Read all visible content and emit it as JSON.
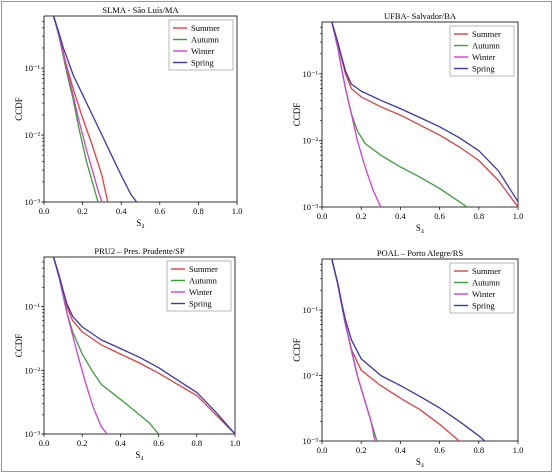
{
  "chart_data": [
    {
      "type": "line",
      "title": "SLMA - São Luís/MA",
      "xlabel": "S₄",
      "ylabel": "CCDF",
      "xlim": [
        0.0,
        1.0
      ],
      "ylim": [
        0.001,
        0.6
      ],
      "yscale": "log",
      "xticks": [
        "0.0",
        "0.2",
        "0.4",
        "0.6",
        "0.8",
        "1.0"
      ],
      "yticks": [
        {
          "v": 0.1,
          "label": "10⁻¹"
        },
        {
          "v": 0.01,
          "label": "10⁻²"
        },
        {
          "v": 0.001,
          "label": "10⁻³"
        }
      ],
      "legend_position": "top-right",
      "series": [
        {
          "name": "Summer",
          "color": "#e04040",
          "x": [
            0.05,
            0.08,
            0.1,
            0.12,
            0.15,
            0.2,
            0.25,
            0.3,
            0.33
          ],
          "y": [
            0.6,
            0.3,
            0.17,
            0.1,
            0.05,
            0.018,
            0.007,
            0.0025,
            0.001
          ]
        },
        {
          "name": "Autumn",
          "color": "#3aa03a",
          "x": [
            0.05,
            0.08,
            0.1,
            0.12,
            0.15,
            0.18,
            0.22,
            0.25,
            0.28
          ],
          "y": [
            0.6,
            0.28,
            0.15,
            0.08,
            0.035,
            0.013,
            0.004,
            0.002,
            0.001
          ]
        },
        {
          "name": "Winter",
          "color": "#d040d0",
          "x": [
            0.05,
            0.08,
            0.1,
            0.12,
            0.15,
            0.18,
            0.22,
            0.25,
            0.28,
            0.3
          ],
          "y": [
            0.6,
            0.29,
            0.16,
            0.09,
            0.04,
            0.017,
            0.006,
            0.003,
            0.0015,
            0.001
          ]
        },
        {
          "name": "Spring",
          "color": "#3838b0",
          "x": [
            0.05,
            0.08,
            0.1,
            0.12,
            0.15,
            0.2,
            0.25,
            0.3,
            0.35,
            0.4,
            0.45,
            0.48
          ],
          "y": [
            0.6,
            0.32,
            0.2,
            0.14,
            0.08,
            0.04,
            0.02,
            0.01,
            0.005,
            0.0025,
            0.0013,
            0.001
          ]
        }
      ]
    },
    {
      "type": "line",
      "title": "UFBA- Salvador/BA",
      "xlabel": "S₄",
      "ylabel": "CCDF",
      "xlim": [
        0.0,
        1.0
      ],
      "ylim": [
        0.001,
        0.6
      ],
      "yscale": "log",
      "xticks": [
        "0.0",
        "0.2",
        "0.4",
        "0.6",
        "0.8",
        "1.0"
      ],
      "yticks": [
        {
          "v": 0.1,
          "label": "10⁻¹"
        },
        {
          "v": 0.01,
          "label": "10⁻²"
        },
        {
          "v": 0.001,
          "label": "10⁻³"
        }
      ],
      "legend_position": "top-right",
      "series": [
        {
          "name": "Summer",
          "color": "#e04040",
          "x": [
            0.05,
            0.08,
            0.1,
            0.12,
            0.15,
            0.2,
            0.3,
            0.4,
            0.5,
            0.6,
            0.7,
            0.8,
            0.9,
            1.0
          ],
          "y": [
            0.6,
            0.3,
            0.17,
            0.1,
            0.06,
            0.045,
            0.032,
            0.024,
            0.017,
            0.012,
            0.008,
            0.005,
            0.0025,
            0.001
          ]
        },
        {
          "name": "Autumn",
          "color": "#3aa03a",
          "x": [
            0.05,
            0.08,
            0.1,
            0.12,
            0.15,
            0.18,
            0.22,
            0.3,
            0.4,
            0.5,
            0.6,
            0.7,
            0.74
          ],
          "y": [
            0.6,
            0.25,
            0.12,
            0.06,
            0.025,
            0.014,
            0.009,
            0.006,
            0.004,
            0.0028,
            0.0019,
            0.0012,
            0.001
          ]
        },
        {
          "name": "Winter",
          "color": "#d040d0",
          "x": [
            0.05,
            0.08,
            0.1,
            0.12,
            0.15,
            0.18,
            0.22,
            0.26,
            0.3
          ],
          "y": [
            0.6,
            0.25,
            0.12,
            0.06,
            0.025,
            0.01,
            0.004,
            0.0018,
            0.001
          ]
        },
        {
          "name": "Spring",
          "color": "#3838b0",
          "x": [
            0.05,
            0.08,
            0.1,
            0.12,
            0.15,
            0.2,
            0.3,
            0.4,
            0.5,
            0.6,
            0.7,
            0.8,
            0.9,
            1.0
          ],
          "y": [
            0.6,
            0.3,
            0.18,
            0.11,
            0.07,
            0.055,
            0.04,
            0.03,
            0.022,
            0.016,
            0.011,
            0.007,
            0.0035,
            0.0012
          ]
        }
      ]
    },
    {
      "type": "line",
      "title": "PRU2 – Pres. Prudente/SP",
      "xlabel": "S₄",
      "ylabel": "CCDF",
      "xlim": [
        0.0,
        1.0
      ],
      "ylim": [
        0.001,
        0.6
      ],
      "yscale": "log",
      "xticks": [
        "0.0",
        "0.2",
        "0.4",
        "0.6",
        "0.8",
        "1.0"
      ],
      "yticks": [
        {
          "v": 0.1,
          "label": "10⁻¹"
        },
        {
          "v": 0.01,
          "label": "10⁻²"
        },
        {
          "v": 0.001,
          "label": "10⁻³"
        }
      ],
      "legend_position": "top-right",
      "series": [
        {
          "name": "Summer",
          "color": "#e04040",
          "x": [
            0.05,
            0.08,
            0.1,
            0.12,
            0.15,
            0.2,
            0.3,
            0.4,
            0.5,
            0.6,
            0.7,
            0.8,
            0.9,
            1.0
          ],
          "y": [
            0.6,
            0.3,
            0.17,
            0.1,
            0.06,
            0.04,
            0.025,
            0.018,
            0.013,
            0.009,
            0.006,
            0.004,
            0.002,
            0.001
          ]
        },
        {
          "name": "Autumn",
          "color": "#3aa03a",
          "x": [
            0.05,
            0.08,
            0.1,
            0.12,
            0.15,
            0.2,
            0.25,
            0.3,
            0.4,
            0.5,
            0.55,
            0.6
          ],
          "y": [
            0.6,
            0.28,
            0.15,
            0.08,
            0.04,
            0.018,
            0.01,
            0.006,
            0.0035,
            0.002,
            0.0015,
            0.001
          ]
        },
        {
          "name": "Winter",
          "color": "#d040d0",
          "x": [
            0.05,
            0.08,
            0.1,
            0.12,
            0.15,
            0.18,
            0.22,
            0.26,
            0.3,
            0.33
          ],
          "y": [
            0.6,
            0.28,
            0.15,
            0.08,
            0.035,
            0.016,
            0.006,
            0.0025,
            0.0013,
            0.001
          ]
        },
        {
          "name": "Spring",
          "color": "#3838b0",
          "x": [
            0.05,
            0.08,
            0.1,
            0.12,
            0.15,
            0.2,
            0.3,
            0.4,
            0.5,
            0.6,
            0.7,
            0.8,
            0.9,
            1.0
          ],
          "y": [
            0.6,
            0.3,
            0.18,
            0.11,
            0.07,
            0.048,
            0.03,
            0.022,
            0.016,
            0.011,
            0.007,
            0.0045,
            0.0022,
            0.001
          ]
        }
      ]
    },
    {
      "type": "line",
      "title": "POAL – Porto Alegre/RS",
      "xlabel": "S₄",
      "ylabel": "CCDF",
      "xlim": [
        0.0,
        1.0
      ],
      "ylim": [
        0.001,
        0.6
      ],
      "yscale": "log",
      "xticks": [
        "0.0",
        "0.2",
        "0.4",
        "0.6",
        "0.8",
        "1.0"
      ],
      "yticks": [
        {
          "v": 0.1,
          "label": "10⁻¹"
        },
        {
          "v": 0.01,
          "label": "10⁻²"
        },
        {
          "v": 0.001,
          "label": "10⁻³"
        }
      ],
      "legend_position": "top-right",
      "series": [
        {
          "name": "Summer",
          "color": "#e04040",
          "x": [
            0.05,
            0.08,
            0.1,
            0.12,
            0.15,
            0.2,
            0.3,
            0.4,
            0.5,
            0.6,
            0.7
          ],
          "y": [
            0.6,
            0.25,
            0.12,
            0.06,
            0.025,
            0.012,
            0.007,
            0.0045,
            0.003,
            0.0018,
            0.001
          ]
        },
        {
          "name": "Autumn",
          "color": "#3aa03a",
          "x": [
            0.05,
            0.08,
            0.1,
            0.12,
            0.15,
            0.18,
            0.22,
            0.25,
            0.28
          ],
          "y": [
            0.6,
            0.25,
            0.12,
            0.06,
            0.025,
            0.01,
            0.004,
            0.002,
            0.001
          ]
        },
        {
          "name": "Winter",
          "color": "#d040d0",
          "x": [
            0.05,
            0.08,
            0.1,
            0.12,
            0.15,
            0.18,
            0.22,
            0.25,
            0.27
          ],
          "y": [
            0.6,
            0.25,
            0.12,
            0.06,
            0.024,
            0.01,
            0.004,
            0.002,
            0.001
          ]
        },
        {
          "name": "Spring",
          "color": "#3838b0",
          "x": [
            0.05,
            0.08,
            0.1,
            0.12,
            0.15,
            0.2,
            0.3,
            0.4,
            0.5,
            0.6,
            0.7,
            0.8,
            0.83
          ],
          "y": [
            0.6,
            0.26,
            0.13,
            0.07,
            0.035,
            0.018,
            0.01,
            0.007,
            0.0048,
            0.0032,
            0.002,
            0.0012,
            0.001
          ]
        }
      ]
    }
  ]
}
